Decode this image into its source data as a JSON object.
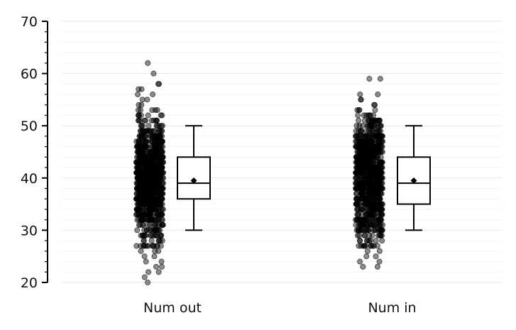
{
  "chart_data": {
    "type": "strip-box",
    "categories": [
      "Num out",
      "Num in"
    ],
    "ylim": [
      20,
      70
    ],
    "yticks": [
      20,
      30,
      40,
      50,
      60,
      70
    ],
    "grid": true,
    "points_style": {
      "color": "#000000",
      "opacity": 0.45
    },
    "boxes": [
      {
        "category": "Num out",
        "whisker_low": 30,
        "q1": 36,
        "median": 39,
        "q3": 44,
        "whisker_high": 50,
        "mean": 39.5
      },
      {
        "category": "Num in",
        "whisker_low": 30,
        "q1": 35,
        "median": 39,
        "q3": 44,
        "whisker_high": 50,
        "mean": 39.5
      }
    ],
    "outliers": [
      {
        "category": "Num out",
        "values": [
          62,
          60,
          58,
          58,
          57,
          57,
          56,
          56,
          55,
          55,
          54,
          54,
          27,
          26,
          26,
          26,
          25,
          25,
          24,
          24,
          23,
          23,
          22,
          22,
          21,
          20
        ]
      },
      {
        "category": "Num in",
        "values": [
          59,
          59,
          56,
          56,
          55,
          55,
          54,
          54,
          27,
          27,
          26,
          26,
          25,
          25,
          24,
          24,
          23,
          23
        ]
      }
    ]
  }
}
